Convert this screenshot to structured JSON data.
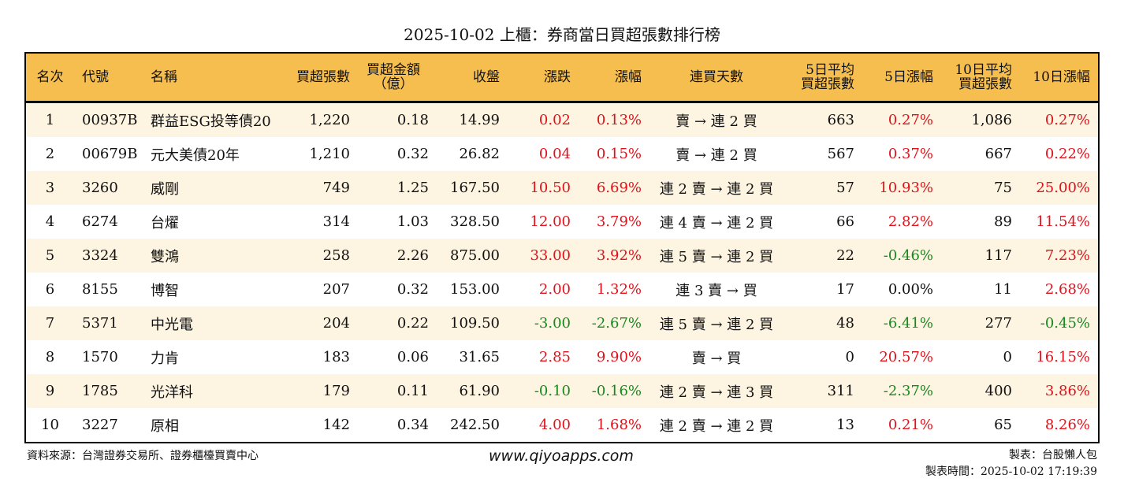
{
  "title": "2025-10-02 上櫃：券商當日買超張數排行榜",
  "headers": [
    "名次",
    "代號",
    "名稱",
    "買超張數",
    "買超金額\n（億）",
    "收盤",
    "漲跌",
    "漲幅",
    "連買天數",
    "5日平均\n買超張數",
    "5日漲幅",
    "10日平均\n買超張數",
    "10日漲幅"
  ],
  "colors": {
    "header": "#F6BE4F",
    "stripe": "#FDF4E1",
    "up": "#E0121B",
    "down": "#168A1E"
  },
  "rows": [
    [
      "1",
      "00937B",
      "群益ESG投等債20",
      "1,220",
      "0.18",
      "14.99",
      "0.02",
      "0.13%",
      "賣 → 連 2 買",
      "663",
      "0.27%",
      "1,086",
      "0.27%"
    ],
    [
      "2",
      "00679B",
      "元大美債20年",
      "1,210",
      "0.32",
      "26.82",
      "0.04",
      "0.15%",
      "賣 → 連 2 買",
      "567",
      "0.37%",
      "667",
      "0.22%"
    ],
    [
      "3",
      "3260",
      "威剛",
      "749",
      "1.25",
      "167.50",
      "10.50",
      "6.69%",
      "連 2 賣 → 連 2 買",
      "57",
      "10.93%",
      "75",
      "25.00%"
    ],
    [
      "4",
      "6274",
      "台燿",
      "314",
      "1.03",
      "328.50",
      "12.00",
      "3.79%",
      "連 4 賣 → 連 2 買",
      "66",
      "2.82%",
      "89",
      "11.54%"
    ],
    [
      "5",
      "3324",
      "雙鴻",
      "258",
      "2.26",
      "875.00",
      "33.00",
      "3.92%",
      "連 5 賣 → 連 2 買",
      "22",
      "-0.46%",
      "117",
      "7.23%"
    ],
    [
      "6",
      "8155",
      "博智",
      "207",
      "0.32",
      "153.00",
      "2.00",
      "1.32%",
      "連 3 賣 → 買",
      "17",
      "0.00%",
      "11",
      "2.68%"
    ],
    [
      "7",
      "5371",
      "中光電",
      "204",
      "0.22",
      "109.50",
      "-3.00",
      "-2.67%",
      "連 5 賣 → 連 2 買",
      "48",
      "-6.41%",
      "277",
      "-0.45%"
    ],
    [
      "8",
      "1570",
      "力肯",
      "183",
      "0.06",
      "31.65",
      "2.85",
      "9.90%",
      "賣 → 買",
      "0",
      "20.57%",
      "0",
      "16.15%"
    ],
    [
      "9",
      "1785",
      "光洋科",
      "179",
      "0.11",
      "61.90",
      "-0.10",
      "-0.16%",
      "連 2 賣 → 連 3 買",
      "311",
      "-2.37%",
      "400",
      "3.86%"
    ],
    [
      "10",
      "3227",
      "原相",
      "142",
      "0.34",
      "242.50",
      "4.00",
      "1.68%",
      "連 2 賣 → 連 2 買",
      "13",
      "0.21%",
      "65",
      "8.26%"
    ]
  ],
  "footer": {
    "source": "資料來源：台灣證券交易所、證券櫃檯買賣中心",
    "site": "www.qiyoapps.com",
    "maker": "製表：台股懶人包",
    "time": "製表時間：2025-10-02 17:19:39"
  }
}
